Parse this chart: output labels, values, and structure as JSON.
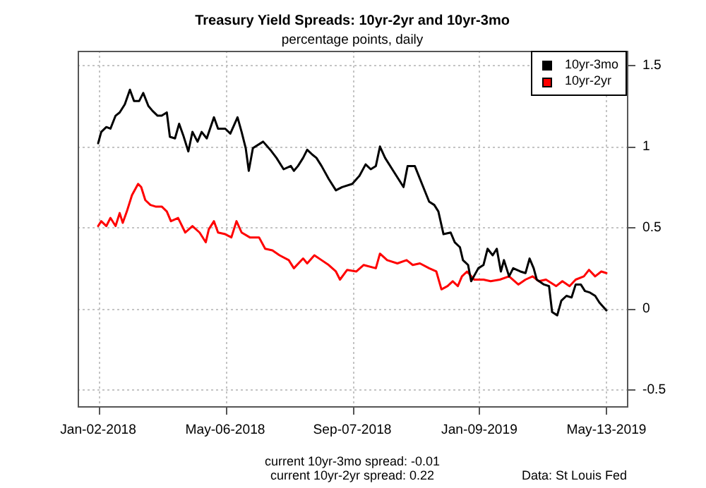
{
  "chart_data": {
    "type": "line",
    "title": "Treasury Yield Spreads: 10yr-2yr and 10yr-3mo",
    "subtitle": "percentage points, daily",
    "series": [
      {
        "name": "10yr-3mo",
        "color": "#000000",
        "x": [
          "2018-01-02",
          "2018-01-05",
          "2018-01-10",
          "2018-01-14",
          "2018-01-19",
          "2018-01-23",
          "2018-01-28",
          "2018-02-02",
          "2018-02-06",
          "2018-02-11",
          "2018-02-15",
          "2018-02-20",
          "2018-02-24",
          "2018-03-01",
          "2018-03-05",
          "2018-03-10",
          "2018-03-13",
          "2018-03-18",
          "2018-03-22",
          "2018-03-26",
          "2018-03-31",
          "2018-04-04",
          "2018-04-09",
          "2018-04-13",
          "2018-04-18",
          "2018-04-25",
          "2018-04-29",
          "2018-05-06",
          "2018-05-11",
          "2018-05-18",
          "2018-05-22",
          "2018-05-26",
          "2018-05-29",
          "2018-06-02",
          "2018-06-12",
          "2018-06-19",
          "2018-06-25",
          "2018-07-02",
          "2018-07-09",
          "2018-07-12",
          "2018-07-16",
          "2018-07-21",
          "2018-07-25",
          "2018-07-30",
          "2018-08-03",
          "2018-08-08",
          "2018-08-15",
          "2018-08-22",
          "2018-08-28",
          "2018-09-07",
          "2018-09-14",
          "2018-09-20",
          "2018-09-25",
          "2018-09-30",
          "2018-10-04",
          "2018-10-09",
          "2018-10-16",
          "2018-10-22",
          "2018-10-27",
          "2018-10-31",
          "2018-11-07",
          "2018-11-14",
          "2018-11-21",
          "2018-11-26",
          "2018-11-30",
          "2018-12-05",
          "2018-12-12",
          "2018-12-16",
          "2018-12-21",
          "2018-12-24",
          "2018-12-29",
          "2019-01-01",
          "2019-01-08",
          "2019-01-13",
          "2019-01-17",
          "2019-01-22",
          "2019-01-26",
          "2019-01-30",
          "2019-02-02",
          "2019-02-07",
          "2019-02-11",
          "2019-02-18",
          "2019-02-23",
          "2019-02-27",
          "2019-03-03",
          "2019-03-06",
          "2019-03-13",
          "2019-03-18",
          "2019-03-21",
          "2019-03-26",
          "2019-03-30",
          "2019-04-04",
          "2019-04-09",
          "2019-04-13",
          "2019-04-18",
          "2019-04-22",
          "2019-04-27",
          "2019-05-02",
          "2019-05-06",
          "2019-05-13"
        ],
        "values": [
          1.02,
          1.09,
          1.12,
          1.11,
          1.19,
          1.21,
          1.26,
          1.35,
          1.28,
          1.28,
          1.33,
          1.25,
          1.22,
          1.19,
          1.19,
          1.21,
          1.06,
          1.05,
          1.14,
          1.07,
          0.97,
          1.09,
          1.03,
          1.09,
          1.05,
          1.18,
          1.11,
          1.11,
          1.08,
          1.18,
          1.09,
          0.99,
          0.85,
          0.99,
          1.03,
          0.98,
          0.93,
          0.86,
          0.88,
          0.85,
          0.88,
          0.93,
          0.98,
          0.95,
          0.93,
          0.88,
          0.8,
          0.73,
          0.75,
          0.77,
          0.82,
          0.89,
          0.86,
          0.88,
          1.0,
          0.93,
          0.86,
          0.8,
          0.75,
          0.88,
          0.88,
          0.77,
          0.66,
          0.64,
          0.6,
          0.46,
          0.47,
          0.41,
          0.38,
          0.3,
          0.27,
          0.17,
          0.25,
          0.27,
          0.37,
          0.33,
          0.37,
          0.23,
          0.3,
          0.2,
          0.25,
          0.23,
          0.22,
          0.31,
          0.25,
          0.18,
          0.15,
          0.14,
          -0.02,
          -0.04,
          0.05,
          0.08,
          0.07,
          0.15,
          0.15,
          0.11,
          0.1,
          0.08,
          0.04,
          -0.01
        ]
      },
      {
        "name": "10yr-2yr",
        "color": "#ff0000",
        "x": [
          "2018-01-02",
          "2018-01-05",
          "2018-01-10",
          "2018-01-14",
          "2018-01-19",
          "2018-01-23",
          "2018-01-26",
          "2018-01-30",
          "2018-02-04",
          "2018-02-10",
          "2018-02-13",
          "2018-02-17",
          "2018-02-22",
          "2018-02-27",
          "2018-03-05",
          "2018-03-10",
          "2018-03-14",
          "2018-03-21",
          "2018-03-28",
          "2018-04-04",
          "2018-04-11",
          "2018-04-17",
          "2018-04-20",
          "2018-04-25",
          "2018-04-29",
          "2018-05-06",
          "2018-05-12",
          "2018-05-17",
          "2018-05-22",
          "2018-05-30",
          "2018-06-08",
          "2018-06-14",
          "2018-06-21",
          "2018-06-28",
          "2018-07-07",
          "2018-07-12",
          "2018-07-21",
          "2018-07-25",
          "2018-08-01",
          "2018-08-08",
          "2018-08-15",
          "2018-08-22",
          "2018-08-26",
          "2018-09-02",
          "2018-09-11",
          "2018-09-18",
          "2018-09-30",
          "2018-10-04",
          "2018-10-11",
          "2018-10-21",
          "2018-10-30",
          "2018-11-05",
          "2018-11-12",
          "2018-11-21",
          "2018-11-28",
          "2018-12-03",
          "2018-12-09",
          "2018-12-14",
          "2018-12-19",
          "2018-12-23",
          "2018-12-28",
          "2019-01-04",
          "2019-01-13",
          "2019-01-20",
          "2019-01-29",
          "2019-02-07",
          "2019-02-16",
          "2019-02-23",
          "2019-03-02",
          "2019-03-08",
          "2019-03-15",
          "2019-03-25",
          "2019-03-31",
          "2019-04-07",
          "2019-04-13",
          "2019-04-21",
          "2019-04-26",
          "2019-05-02",
          "2019-05-08",
          "2019-05-13"
        ],
        "values": [
          0.51,
          0.54,
          0.51,
          0.56,
          0.51,
          0.59,
          0.53,
          0.6,
          0.7,
          0.77,
          0.75,
          0.67,
          0.64,
          0.63,
          0.63,
          0.6,
          0.54,
          0.56,
          0.47,
          0.51,
          0.47,
          0.41,
          0.49,
          0.54,
          0.47,
          0.46,
          0.44,
          0.54,
          0.47,
          0.44,
          0.44,
          0.37,
          0.36,
          0.33,
          0.3,
          0.25,
          0.31,
          0.28,
          0.33,
          0.3,
          0.27,
          0.23,
          0.18,
          0.24,
          0.23,
          0.27,
          0.25,
          0.34,
          0.3,
          0.28,
          0.3,
          0.27,
          0.28,
          0.25,
          0.23,
          0.12,
          0.14,
          0.17,
          0.14,
          0.2,
          0.23,
          0.18,
          0.18,
          0.17,
          0.18,
          0.2,
          0.15,
          0.18,
          0.2,
          0.17,
          0.18,
          0.14,
          0.17,
          0.14,
          0.18,
          0.2,
          0.24,
          0.2,
          0.23,
          0.22
        ]
      }
    ],
    "xlim": [
      "2017-12-13",
      "2019-06-02"
    ],
    "xticks": [
      {
        "value": "2018-01-02",
        "label": "Jan-02-2018"
      },
      {
        "value": "2018-05-06",
        "label": "May-06-2018"
      },
      {
        "value": "2018-09-07",
        "label": "Sep-07-2018"
      },
      {
        "value": "2019-01-09",
        "label": "Jan-09-2019"
      },
      {
        "value": "2019-05-13",
        "label": "May-13-2019"
      }
    ],
    "ylim": [
      -0.6,
      1.59
    ],
    "yticks": [
      -0.5,
      0,
      0.5,
      1,
      1.5
    ],
    "grid": true,
    "legend": "top right",
    "annotations": [
      "current 10yr-3mo spread: -0.01",
      "current 10yr-2yr spread: 0.22",
      "Data: St Louis Fed"
    ]
  }
}
